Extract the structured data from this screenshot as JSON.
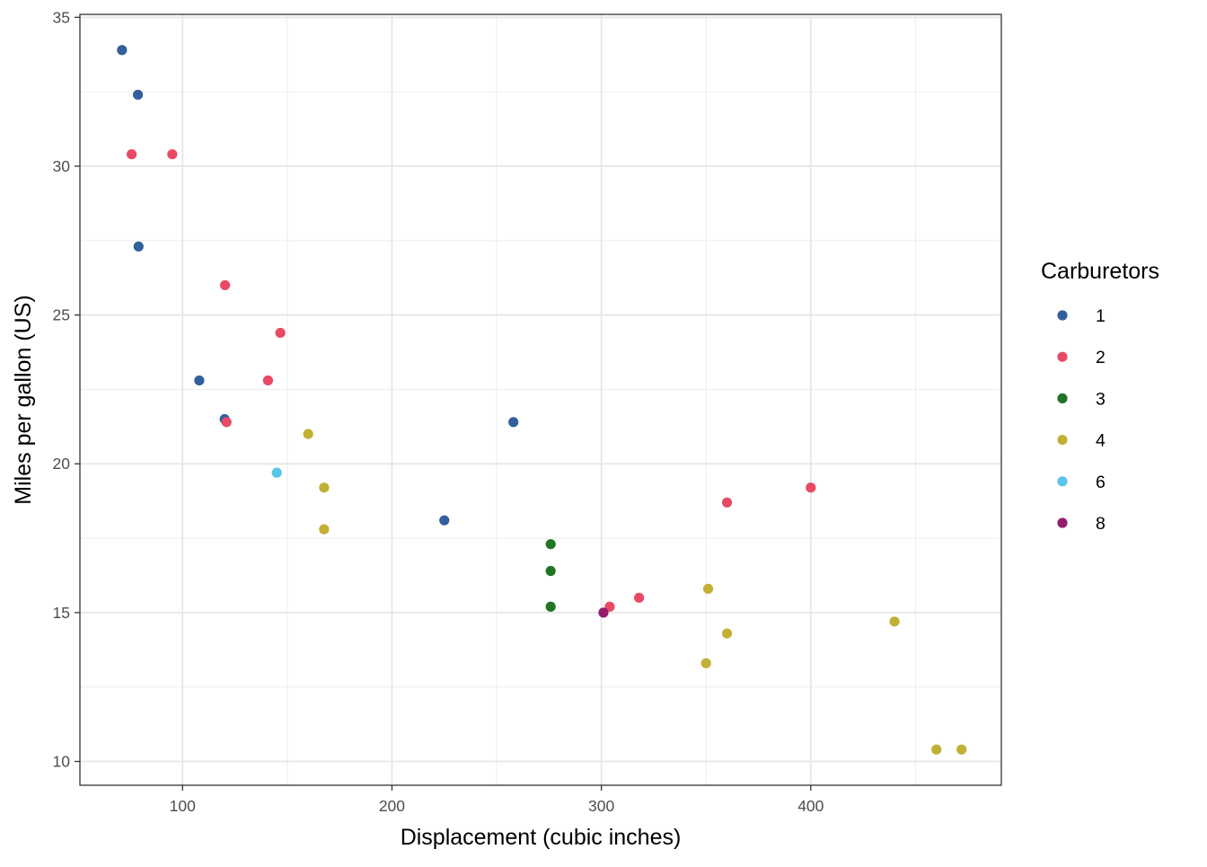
{
  "chart_data": {
    "type": "scatter",
    "xlabel": "Displacement (cubic inches)",
    "ylabel": "Miles per gallon (US)",
    "xlim": [
      51,
      491
    ],
    "ylim": [
      9.2,
      35.1
    ],
    "x_ticks": [
      100,
      200,
      300,
      400
    ],
    "y_ticks": [
      10,
      15,
      20,
      25,
      30,
      35
    ],
    "grid": true,
    "legend": {
      "title": "Carburetors",
      "placement": "right",
      "entries": [
        {
          "label": "1",
          "color": "#33609b"
        },
        {
          "label": "2",
          "color": "#e84a64"
        },
        {
          "label": "3",
          "color": "#207524"
        },
        {
          "label": "4",
          "color": "#c2b034"
        },
        {
          "label": "6",
          "color": "#5bc4ea"
        },
        {
          "label": "8",
          "color": "#951d6b"
        }
      ]
    },
    "series": [
      {
        "name": "1",
        "color": "#33609b",
        "points": [
          {
            "x": 71.1,
            "y": 33.9
          },
          {
            "x": 78.7,
            "y": 32.4
          },
          {
            "x": 79.0,
            "y": 27.3
          },
          {
            "x": 108.0,
            "y": 22.8
          },
          {
            "x": 120.1,
            "y": 21.5
          },
          {
            "x": 225.0,
            "y": 18.1
          },
          {
            "x": 258.0,
            "y": 21.4
          }
        ]
      },
      {
        "name": "2",
        "color": "#e84a64",
        "points": [
          {
            "x": 75.7,
            "y": 30.4
          },
          {
            "x": 95.1,
            "y": 30.4
          },
          {
            "x": 120.3,
            "y": 26.0
          },
          {
            "x": 146.7,
            "y": 24.4
          },
          {
            "x": 140.8,
            "y": 22.8
          },
          {
            "x": 121.0,
            "y": 21.4
          },
          {
            "x": 304.0,
            "y": 15.2
          },
          {
            "x": 318.0,
            "y": 15.5
          },
          {
            "x": 360.0,
            "y": 18.7
          },
          {
            "x": 400.0,
            "y": 19.2
          }
        ]
      },
      {
        "name": "3",
        "color": "#207524",
        "points": [
          {
            "x": 275.8,
            "y": 17.3
          },
          {
            "x": 275.8,
            "y": 16.4
          },
          {
            "x": 275.8,
            "y": 15.2
          }
        ]
      },
      {
        "name": "4",
        "color": "#c2b034",
        "points": [
          {
            "x": 160.0,
            "y": 21.0
          },
          {
            "x": 167.6,
            "y": 19.2
          },
          {
            "x": 167.6,
            "y": 17.8
          },
          {
            "x": 351.0,
            "y": 15.8
          },
          {
            "x": 360.0,
            "y": 14.3
          },
          {
            "x": 350.0,
            "y": 13.3
          },
          {
            "x": 440.0,
            "y": 14.7
          },
          {
            "x": 460.0,
            "y": 10.4
          },
          {
            "x": 472.0,
            "y": 10.4
          }
        ]
      },
      {
        "name": "6",
        "color": "#5bc4ea",
        "points": [
          {
            "x": 145.0,
            "y": 19.7
          }
        ]
      },
      {
        "name": "8",
        "color": "#951d6b",
        "points": [
          {
            "x": 301.0,
            "y": 15.0
          }
        ]
      }
    ]
  }
}
